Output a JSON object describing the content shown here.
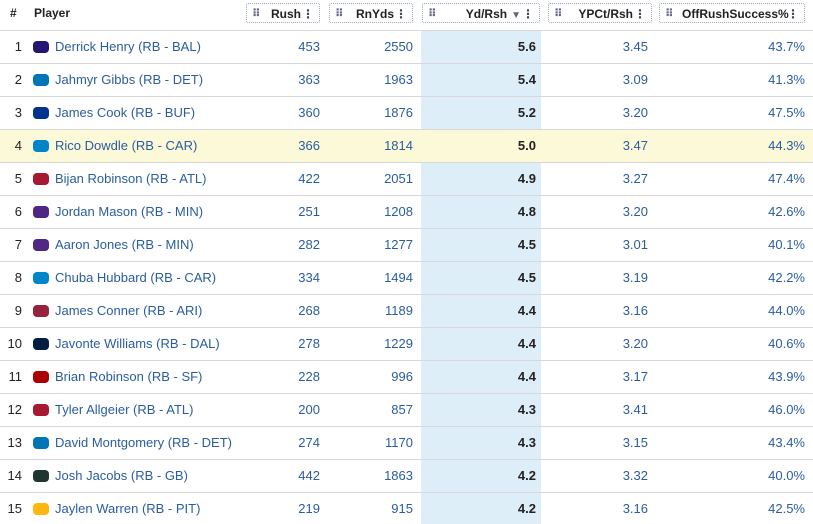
{
  "table": {
    "columns": [
      "#",
      "Player",
      "Rush",
      "RnYds",
      "Yd/Rsh",
      "YPCt/Rsh",
      "OffRushSuccess%"
    ],
    "rows": [
      [
        "1",
        "Derrick Henry (RB - BAL)",
        "453",
        "2550",
        "5.6",
        "3.45",
        "43.7%"
      ],
      [
        "2",
        "Jahmyr Gibbs (RB - DET)",
        "363",
        "1963",
        "5.4",
        "3.09",
        "41.3%"
      ],
      [
        "3",
        "James Cook (RB - BUF)",
        "360",
        "1876",
        "5.2",
        "3.20",
        "47.5%"
      ],
      [
        "4",
        "Rico Dowdle (RB - CAR)",
        "366",
        "1814",
        "5.0",
        "3.47",
        "44.3%"
      ],
      [
        "5",
        "Bijan Robinson (RB - ATL)",
        "422",
        "2051",
        "4.9",
        "3.27",
        "47.4%"
      ],
      [
        "6",
        "Jordan Mason (RB - MIN)",
        "251",
        "1208",
        "4.8",
        "3.20",
        "42.6%"
      ],
      [
        "7",
        "Aaron Jones (RB - MIN)",
        "282",
        "1277",
        "4.5",
        "3.01",
        "40.1%"
      ],
      [
        "8",
        "Chuba Hubbard (RB - CAR)",
        "334",
        "1494",
        "4.5",
        "3.19",
        "42.2%"
      ],
      [
        "9",
        "James Conner (RB - ARI)",
        "268",
        "1189",
        "4.4",
        "3.16",
        "44.0%"
      ],
      [
        "10",
        "Javonte Williams (RB - DAL)",
        "278",
        "1229",
        "4.4",
        "3.20",
        "40.6%"
      ],
      [
        "11",
        "Brian Robinson (RB - SF)",
        "228",
        "996",
        "4.4",
        "3.17",
        "43.9%"
      ],
      [
        "12",
        "Tyler Allgeier (RB - ATL)",
        "200",
        "857",
        "4.3",
        "3.41",
        "46.0%"
      ],
      [
        "13",
        "David Montgomery (RB - DET)",
        "274",
        "1170",
        "4.3",
        "3.15",
        "43.4%"
      ],
      [
        "14",
        "Josh Jacobs (RB - GB)",
        "442",
        "1863",
        "4.2",
        "3.32",
        "40.0%"
      ],
      [
        "15",
        "Jaylen Warren (RB - PIT)",
        "219",
        "915",
        "4.2",
        "3.16",
        "42.5%"
      ]
    ]
  }
}
